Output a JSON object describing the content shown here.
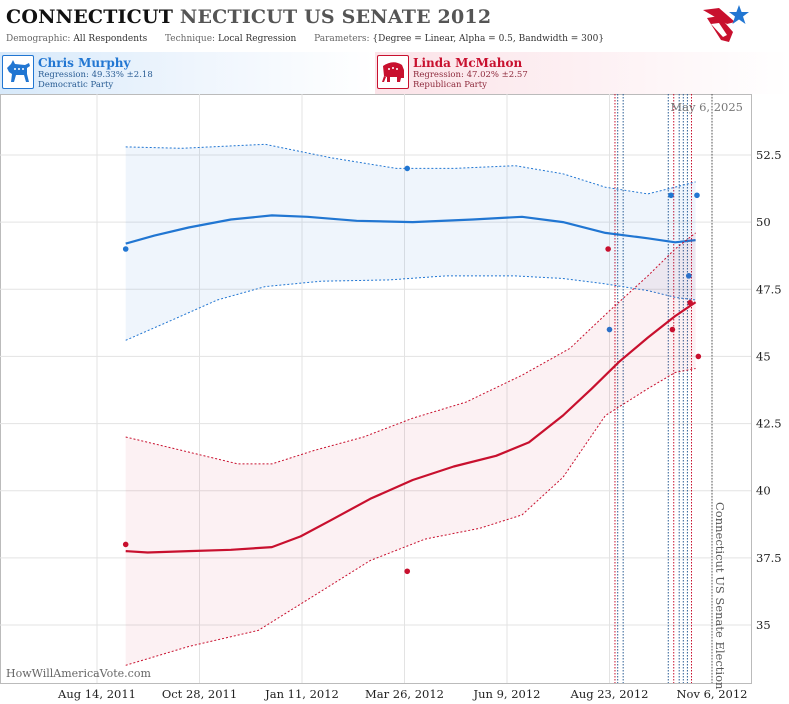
{
  "header": {
    "title_part1": "CONNECTICUT",
    "title_part2": "NECTICUT US SENATE 2012",
    "params": {
      "demographic_label": "Demographic:",
      "demographic_value": "All Respondents",
      "technique_label": "Technique:",
      "technique_value": "Local Regression",
      "parameters_label": "Parameters:",
      "parameters_value": "{Degree = Linear, Alpha = 0.5, Bandwidth = 300}"
    }
  },
  "candidates": {
    "dem": {
      "name": "Chris Murphy",
      "regression": "Regression: 49.33% ±2.18",
      "party": "Democratic Party",
      "color": "#2176d2"
    },
    "rep": {
      "name": "Linda McMahon",
      "regression": "Regression: 47.02% ±2.57",
      "party": "Republican Party",
      "color": "#c8102e"
    }
  },
  "watermark": "HowWillAmericaVote.com",
  "chart_data": {
    "type": "line",
    "current_date_label": "May 6, 2025",
    "event_label": "Connecticut US Senate Election",
    "x_tick_labels": [
      "Aug 14, 2011",
      "Oct 28, 2011",
      "Jan 11, 2012",
      "Mar 26, 2012",
      "Jun 9, 2012",
      "Aug 23, 2012",
      "Nov 6, 2012"
    ],
    "y_ticks": [
      35,
      37.5,
      40,
      42.5,
      45,
      47.5,
      50,
      52.5
    ],
    "y_tick_labels": [
      "35",
      "37.5",
      "40",
      "42.5",
      "45",
      "47.5",
      "50",
      "52.5"
    ],
    "ylim": [
      32.5,
      55.1
    ],
    "grid": true,
    "series": [
      {
        "name": "Chris Murphy",
        "color": "#2176d2",
        "line": [
          [
            "2011-09-04",
            49.2
          ],
          [
            "2011-09-25",
            49.5
          ],
          [
            "2011-10-20",
            49.8
          ],
          [
            "2011-11-20",
            50.1
          ],
          [
            "2011-12-20",
            50.25
          ],
          [
            "2012-01-15",
            50.2
          ],
          [
            "2012-02-20",
            50.05
          ],
          [
            "2012-04-01",
            50.0
          ],
          [
            "2012-05-15",
            50.1
          ],
          [
            "2012-06-20",
            50.2
          ],
          [
            "2012-07-20",
            50.0
          ],
          [
            "2012-08-20",
            49.6
          ],
          [
            "2012-09-20",
            49.4
          ],
          [
            "2012-10-10",
            49.25
          ],
          [
            "2012-10-25",
            49.33
          ]
        ],
        "upper": [
          [
            "2011-09-04",
            52.8
          ],
          [
            "2011-10-15",
            52.75
          ],
          [
            "2011-12-15",
            52.9
          ],
          [
            "2012-02-01",
            52.4
          ],
          [
            "2012-03-20",
            52.0
          ],
          [
            "2012-05-01",
            52.0
          ],
          [
            "2012-06-15",
            52.1
          ],
          [
            "2012-07-20",
            51.8
          ],
          [
            "2012-08-20",
            51.3
          ],
          [
            "2012-09-20",
            51.05
          ],
          [
            "2012-10-10",
            51.3
          ],
          [
            "2012-10-25",
            51.5
          ]
        ],
        "lower": [
          [
            "2011-09-04",
            45.6
          ],
          [
            "2011-10-10",
            46.4
          ],
          [
            "2011-11-10",
            47.1
          ],
          [
            "2011-12-15",
            47.6
          ],
          [
            "2012-01-25",
            47.8
          ],
          [
            "2012-03-15",
            47.85
          ],
          [
            "2012-04-25",
            48.0
          ],
          [
            "2012-06-15",
            48.0
          ],
          [
            "2012-07-20",
            47.9
          ],
          [
            "2012-08-20",
            47.7
          ],
          [
            "2012-09-20",
            47.45
          ],
          [
            "2012-10-10",
            47.2
          ],
          [
            "2012-10-25",
            47.1
          ]
        ],
        "points": [
          [
            "2011-09-04",
            49
          ],
          [
            "2012-03-28",
            52
          ],
          [
            "2012-08-23",
            46
          ],
          [
            "2012-10-07",
            51
          ],
          [
            "2012-10-20",
            48
          ],
          [
            "2012-10-26",
            51
          ]
        ]
      },
      {
        "name": "Linda McMahon",
        "color": "#c8102e",
        "line": [
          [
            "2011-09-04",
            37.75
          ],
          [
            "2011-09-20",
            37.7
          ],
          [
            "2011-10-20",
            37.75
          ],
          [
            "2011-11-20",
            37.8
          ],
          [
            "2011-12-20",
            37.9
          ],
          [
            "2012-01-10",
            38.3
          ],
          [
            "2012-02-01",
            38.9
          ],
          [
            "2012-03-01",
            39.7
          ],
          [
            "2012-04-01",
            40.4
          ],
          [
            "2012-05-01",
            40.9
          ],
          [
            "2012-06-01",
            41.3
          ],
          [
            "2012-06-25",
            41.8
          ],
          [
            "2012-07-20",
            42.8
          ],
          [
            "2012-08-10",
            43.8
          ],
          [
            "2012-08-30",
            44.8
          ],
          [
            "2012-09-20",
            45.7
          ],
          [
            "2012-10-10",
            46.5
          ],
          [
            "2012-10-25",
            47.02
          ]
        ],
        "upper": [
          [
            "2011-09-04",
            42.0
          ],
          [
            "2011-10-15",
            41.5
          ],
          [
            "2011-11-25",
            41.0
          ],
          [
            "2011-12-20",
            41.0
          ],
          [
            "2012-01-20",
            41.5
          ],
          [
            "2012-02-25",
            42.0
          ],
          [
            "2012-04-01",
            42.7
          ],
          [
            "2012-05-10",
            43.3
          ],
          [
            "2012-06-20",
            44.3
          ],
          [
            "2012-07-25",
            45.3
          ],
          [
            "2012-08-23",
            46.7
          ],
          [
            "2012-09-20",
            48.0
          ],
          [
            "2012-10-10",
            49.0
          ],
          [
            "2012-10-25",
            49.6
          ]
        ],
        "lower": [
          [
            "2011-09-04",
            33.5
          ],
          [
            "2011-10-20",
            34.2
          ],
          [
            "2011-12-10",
            34.8
          ],
          [
            "2012-01-20",
            36.1
          ],
          [
            "2012-03-01",
            37.4
          ],
          [
            "2012-04-10",
            38.2
          ],
          [
            "2012-05-20",
            38.6
          ],
          [
            "2012-06-20",
            39.1
          ],
          [
            "2012-07-20",
            40.5
          ],
          [
            "2012-08-20",
            42.8
          ],
          [
            "2012-09-20",
            43.8
          ],
          [
            "2012-10-10",
            44.4
          ],
          [
            "2012-10-25",
            44.55
          ]
        ],
        "points": [
          [
            "2011-09-04",
            38
          ],
          [
            "2012-03-28",
            37
          ],
          [
            "2012-08-22",
            49
          ],
          [
            "2012-10-08",
            46
          ],
          [
            "2012-10-21",
            47
          ],
          [
            "2012-10-27",
            45
          ]
        ]
      }
    ],
    "poll_date_lines": [
      {
        "date": "2012-08-27",
        "color": "#c8102e"
      },
      {
        "date": "2012-08-29",
        "color": "#2a5d94"
      },
      {
        "date": "2012-09-02",
        "color": "#2a5d94"
      },
      {
        "date": "2012-10-05",
        "color": "#2a5d94"
      },
      {
        "date": "2012-10-09",
        "color": "#c8102e"
      },
      {
        "date": "2012-10-13",
        "color": "#2a5d94"
      },
      {
        "date": "2012-10-16",
        "color": "#2a5d94"
      },
      {
        "date": "2012-10-19",
        "color": "#2a5d94"
      },
      {
        "date": "2012-10-22",
        "color": "#c8102e"
      },
      {
        "date": "2012-11-06",
        "color": "#555555"
      }
    ]
  }
}
